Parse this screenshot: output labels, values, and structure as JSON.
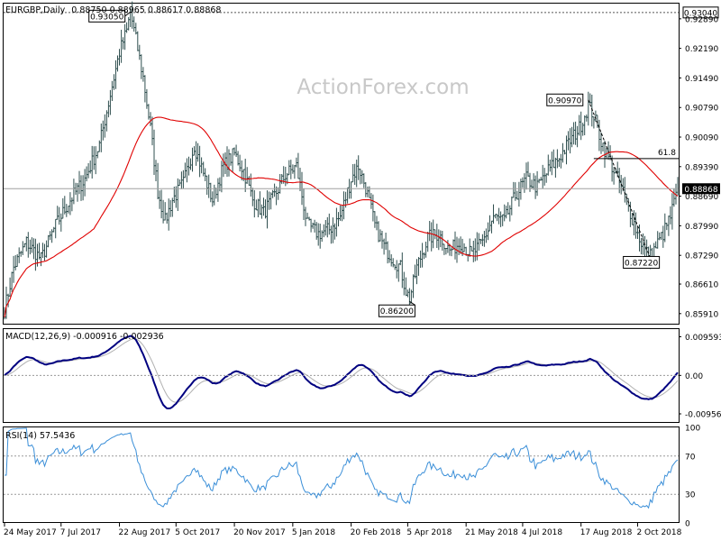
{
  "header": {
    "symbol": "EURGBP,Daily",
    "ohlc": "0.88750 0.88965 0.88617 0.88868"
  },
  "watermark": "ActionForex.com",
  "colors": {
    "candle": "#2f4f4f",
    "ma": "#e00000",
    "macd": "#000080",
    "signal": "#b0b0b0",
    "rsi": "#3b8fd8",
    "frame": "#000000"
  },
  "chart_data": [
    {
      "type": "candlestick",
      "title": "EURGBP,Daily",
      "ylim": [
        0.8565,
        0.9325
      ],
      "y_ticks": [
        "0.92890",
        "0.92190",
        "0.91490",
        "0.90790",
        "0.90090",
        "0.89390",
        "0.88690",
        "0.87990",
        "0.87290",
        "0.86610",
        "0.85910"
      ],
      "y_tick_values": [
        0.9289,
        0.9219,
        0.9149,
        0.9079,
        0.9009,
        0.8939,
        0.8869,
        0.8799,
        0.8729,
        0.8661,
        0.8591
      ],
      "x_ticks": [
        "24 May 2017",
        "7 Jul 2017",
        "22 Aug 2017",
        "5 Oct 2017",
        "20 Nov 2017",
        "5 Jan 2018",
        "20 Feb 2018",
        "5 Apr 2018",
        "21 May 2018",
        "4 Jul 2018",
        "17 Aug 2018",
        "2 Oct 2018"
      ],
      "x_tick_index": [
        0,
        31,
        63,
        94,
        126,
        158,
        190,
        221,
        253,
        284,
        316,
        347
      ],
      "n_bars": 370,
      "anchors": [
        [
          0,
          0.86
        ],
        [
          5,
          0.87
        ],
        [
          12,
          0.876
        ],
        [
          20,
          0.872
        ],
        [
          28,
          0.88
        ],
        [
          36,
          0.886
        ],
        [
          44,
          0.891
        ],
        [
          52,
          0.899
        ],
        [
          58,
          0.911
        ],
        [
          63,
          0.921
        ],
        [
          67,
          0.926
        ],
        [
          69,
          0.9305
        ],
        [
          72,
          0.924
        ],
        [
          76,
          0.915
        ],
        [
          80,
          0.903
        ],
        [
          84,
          0.888
        ],
        [
          88,
          0.881
        ],
        [
          92,
          0.886
        ],
        [
          98,
          0.89
        ],
        [
          104,
          0.899
        ],
        [
          110,
          0.891
        ],
        [
          114,
          0.886
        ],
        [
          120,
          0.894
        ],
        [
          126,
          0.897
        ],
        [
          131,
          0.893
        ],
        [
          136,
          0.886
        ],
        [
          142,
          0.883
        ],
        [
          148,
          0.887
        ],
        [
          154,
          0.892
        ],
        [
          160,
          0.894
        ],
        [
          166,
          0.88
        ],
        [
          172,
          0.878
        ],
        [
          178,
          0.879
        ],
        [
          184,
          0.882
        ],
        [
          190,
          0.891
        ],
        [
          194,
          0.894
        ],
        [
          198,
          0.889
        ],
        [
          203,
          0.88
        ],
        [
          208,
          0.875
        ],
        [
          213,
          0.872
        ],
        [
          217,
          0.87
        ],
        [
          220,
          0.8645
        ],
        [
          222,
          0.8625
        ],
        [
          226,
          0.87
        ],
        [
          232,
          0.877
        ],
        [
          238,
          0.878
        ],
        [
          244,
          0.874
        ],
        [
          250,
          0.876
        ],
        [
          256,
          0.873
        ],
        [
          262,
          0.876
        ],
        [
          268,
          0.882
        ],
        [
          274,
          0.881
        ],
        [
          280,
          0.887
        ],
        [
          286,
          0.891
        ],
        [
          292,
          0.889
        ],
        [
          298,
          0.893
        ],
        [
          304,
          0.896
        ],
        [
          310,
          0.9
        ],
        [
          315,
          0.903
        ],
        [
          318,
          0.906
        ],
        [
          320,
          0.9085
        ],
        [
          323,
          0.906
        ],
        [
          327,
          0.9
        ],
        [
          331,
          0.896
        ],
        [
          335,
          0.892
        ],
        [
          339,
          0.888
        ],
        [
          343,
          0.883
        ],
        [
          347,
          0.878
        ],
        [
          351,
          0.874
        ],
        [
          354,
          0.8728
        ],
        [
          357,
          0.875
        ],
        [
          361,
          0.878
        ],
        [
          365,
          0.882
        ],
        [
          369,
          0.8887
        ]
      ],
      "ma_period": 50,
      "seed": 7,
      "hlines": [
        {
          "label": "0.93040",
          "value": 0.9304
        },
        {
          "label": "0.88868",
          "value": 0.88868
        },
        {
          "label": "61.8",
          "value": 0.8958
        }
      ],
      "annotations": [
        {
          "text": "0.93050",
          "bar": 69,
          "value": 0.9305
        },
        {
          "text": "0.90970",
          "bar": 320,
          "value": 0.9097
        },
        {
          "text": "0.86200",
          "bar": 222,
          "value": 0.862
        },
        {
          "text": "0.87220",
          "bar": 354,
          "value": 0.8722
        }
      ],
      "fib": {
        "from_bar": 320,
        "from_value": 0.9097,
        "to_bar": 354,
        "to_value": 0.8722,
        "level_bar": 323
      }
    },
    {
      "type": "line",
      "title": "MACD(12,26,9) -0.000916 -0.002936",
      "ylim": [
        -0.0118,
        0.0115
      ],
      "y_ticks": [
        "0.009593",
        "0.00",
        "-0.009562"
      ],
      "y_tick_values": [
        0.009593,
        0,
        -0.009562
      ],
      "series": [
        {
          "role": "macd"
        },
        {
          "role": "signal"
        }
      ]
    },
    {
      "type": "line",
      "title": "RSI(14) 57.5436",
      "ylim": [
        0,
        100
      ],
      "y_ticks": [
        "100",
        "70",
        "30",
        "0"
      ],
      "y_tick_values": [
        100,
        70,
        30,
        0
      ],
      "levels": [
        70,
        30
      ]
    }
  ]
}
